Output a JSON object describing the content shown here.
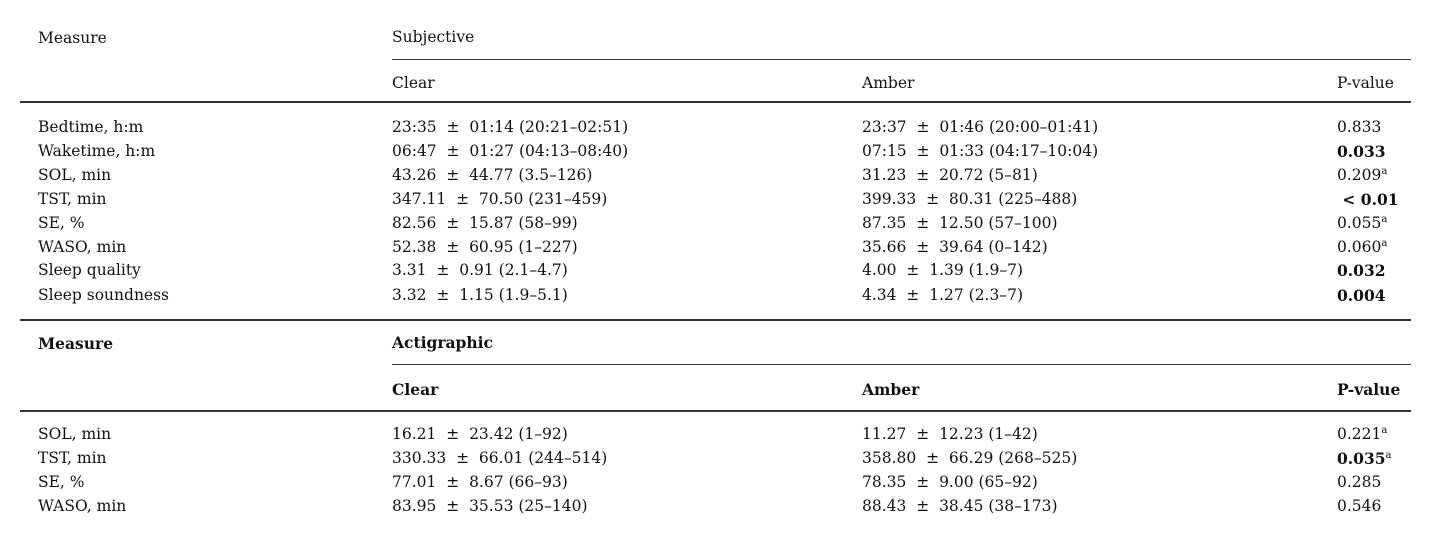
{
  "colors": {
    "background": "#ffffff",
    "text": "#111111",
    "rule": "#333333"
  },
  "table": {
    "sections": [
      {
        "measure_header": "Measure",
        "group_header": "Subjective",
        "columns": {
          "clear": "Clear",
          "amber": "Amber",
          "p": "P-value"
        },
        "rows": [
          {
            "measure": "Bedtime, h:m",
            "clear": "23:35  ±  01:14 (20:21–02:51)",
            "amber": "23:37  ±  01:46 (20:00–01:41)",
            "p": "0.833",
            "p_sup": "",
            "p_bold": "false"
          },
          {
            "measure": "Waketime, h:m",
            "clear": "06:47  ±  01:27 (04:13–08:40)",
            "amber": "07:15  ±  01:33 (04:17–10:04)",
            "p": "0.033",
            "p_sup": "",
            "p_bold": "true"
          },
          {
            "measure": "SOL, min",
            "clear": "43.26  ±  44.77 (3.5–126)",
            "amber": "31.23  ±  20.72 (5–81)",
            "p": "0.209",
            "p_sup": "a",
            "p_bold": "false"
          },
          {
            "measure": "TST, min",
            "clear": "347.11  ±  70.50 (231–459)",
            "amber": "399.33  ±  80.31 (225–488)",
            "p": " < 0.01",
            "p_sup": "",
            "p_bold": "true"
          },
          {
            "measure": "SE, %",
            "clear": "82.56  ±  15.87 (58–99)",
            "amber": "87.35  ±  12.50 (57–100)",
            "p": "0.055",
            "p_sup": "a",
            "p_bold": "false"
          },
          {
            "measure": "WASO, min",
            "clear": "52.38  ±  60.95 (1–227)",
            "amber": "35.66  ±  39.64 (0–142)",
            "p": "0.060",
            "p_sup": "a",
            "p_bold": "false"
          },
          {
            "measure": "Sleep quality",
            "clear": "3.31  ±  0.91 (2.1–4.7)",
            "amber": "4.00  ±  1.39 (1.9–7)",
            "p": "0.032",
            "p_sup": "",
            "p_bold": "true"
          },
          {
            "measure": "Sleep soundness",
            "clear": "3.32  ±  1.15 (1.9–5.1)",
            "amber": "4.34  ±  1.27 (2.3–7)",
            "p": "0.004",
            "p_sup": "",
            "p_bold": "true"
          }
        ]
      },
      {
        "measure_header": "Measure",
        "group_header": "Actigraphic",
        "columns": {
          "clear": "Clear",
          "amber": "Amber",
          "p": "P-value"
        },
        "rows": [
          {
            "measure": "SOL, min",
            "clear": "16.21  ±  23.42 (1–92)",
            "amber": "11.27  ±  12.23 (1–42)",
            "p": "0.221",
            "p_sup": "a",
            "p_bold": "false"
          },
          {
            "measure": "TST, min",
            "clear": "330.33  ±  66.01 (244–514)",
            "amber": "358.80  ±  66.29 (268–525)",
            "p": "0.035",
            "p_sup": "a",
            "p_bold": "true"
          },
          {
            "measure": "SE, %",
            "clear": "77.01  ±  8.67 (66–93)",
            "amber": "78.35  ±  9.00 (65–92)",
            "p": "0.285",
            "p_sup": "",
            "p_bold": "false"
          },
          {
            "measure": "WASO, min",
            "clear": "83.95  ±  35.53 (25–140)",
            "amber": "88.43  ±  38.45 (38–173)",
            "p": "0.546",
            "p_sup": "",
            "p_bold": "false"
          }
        ]
      }
    ]
  }
}
